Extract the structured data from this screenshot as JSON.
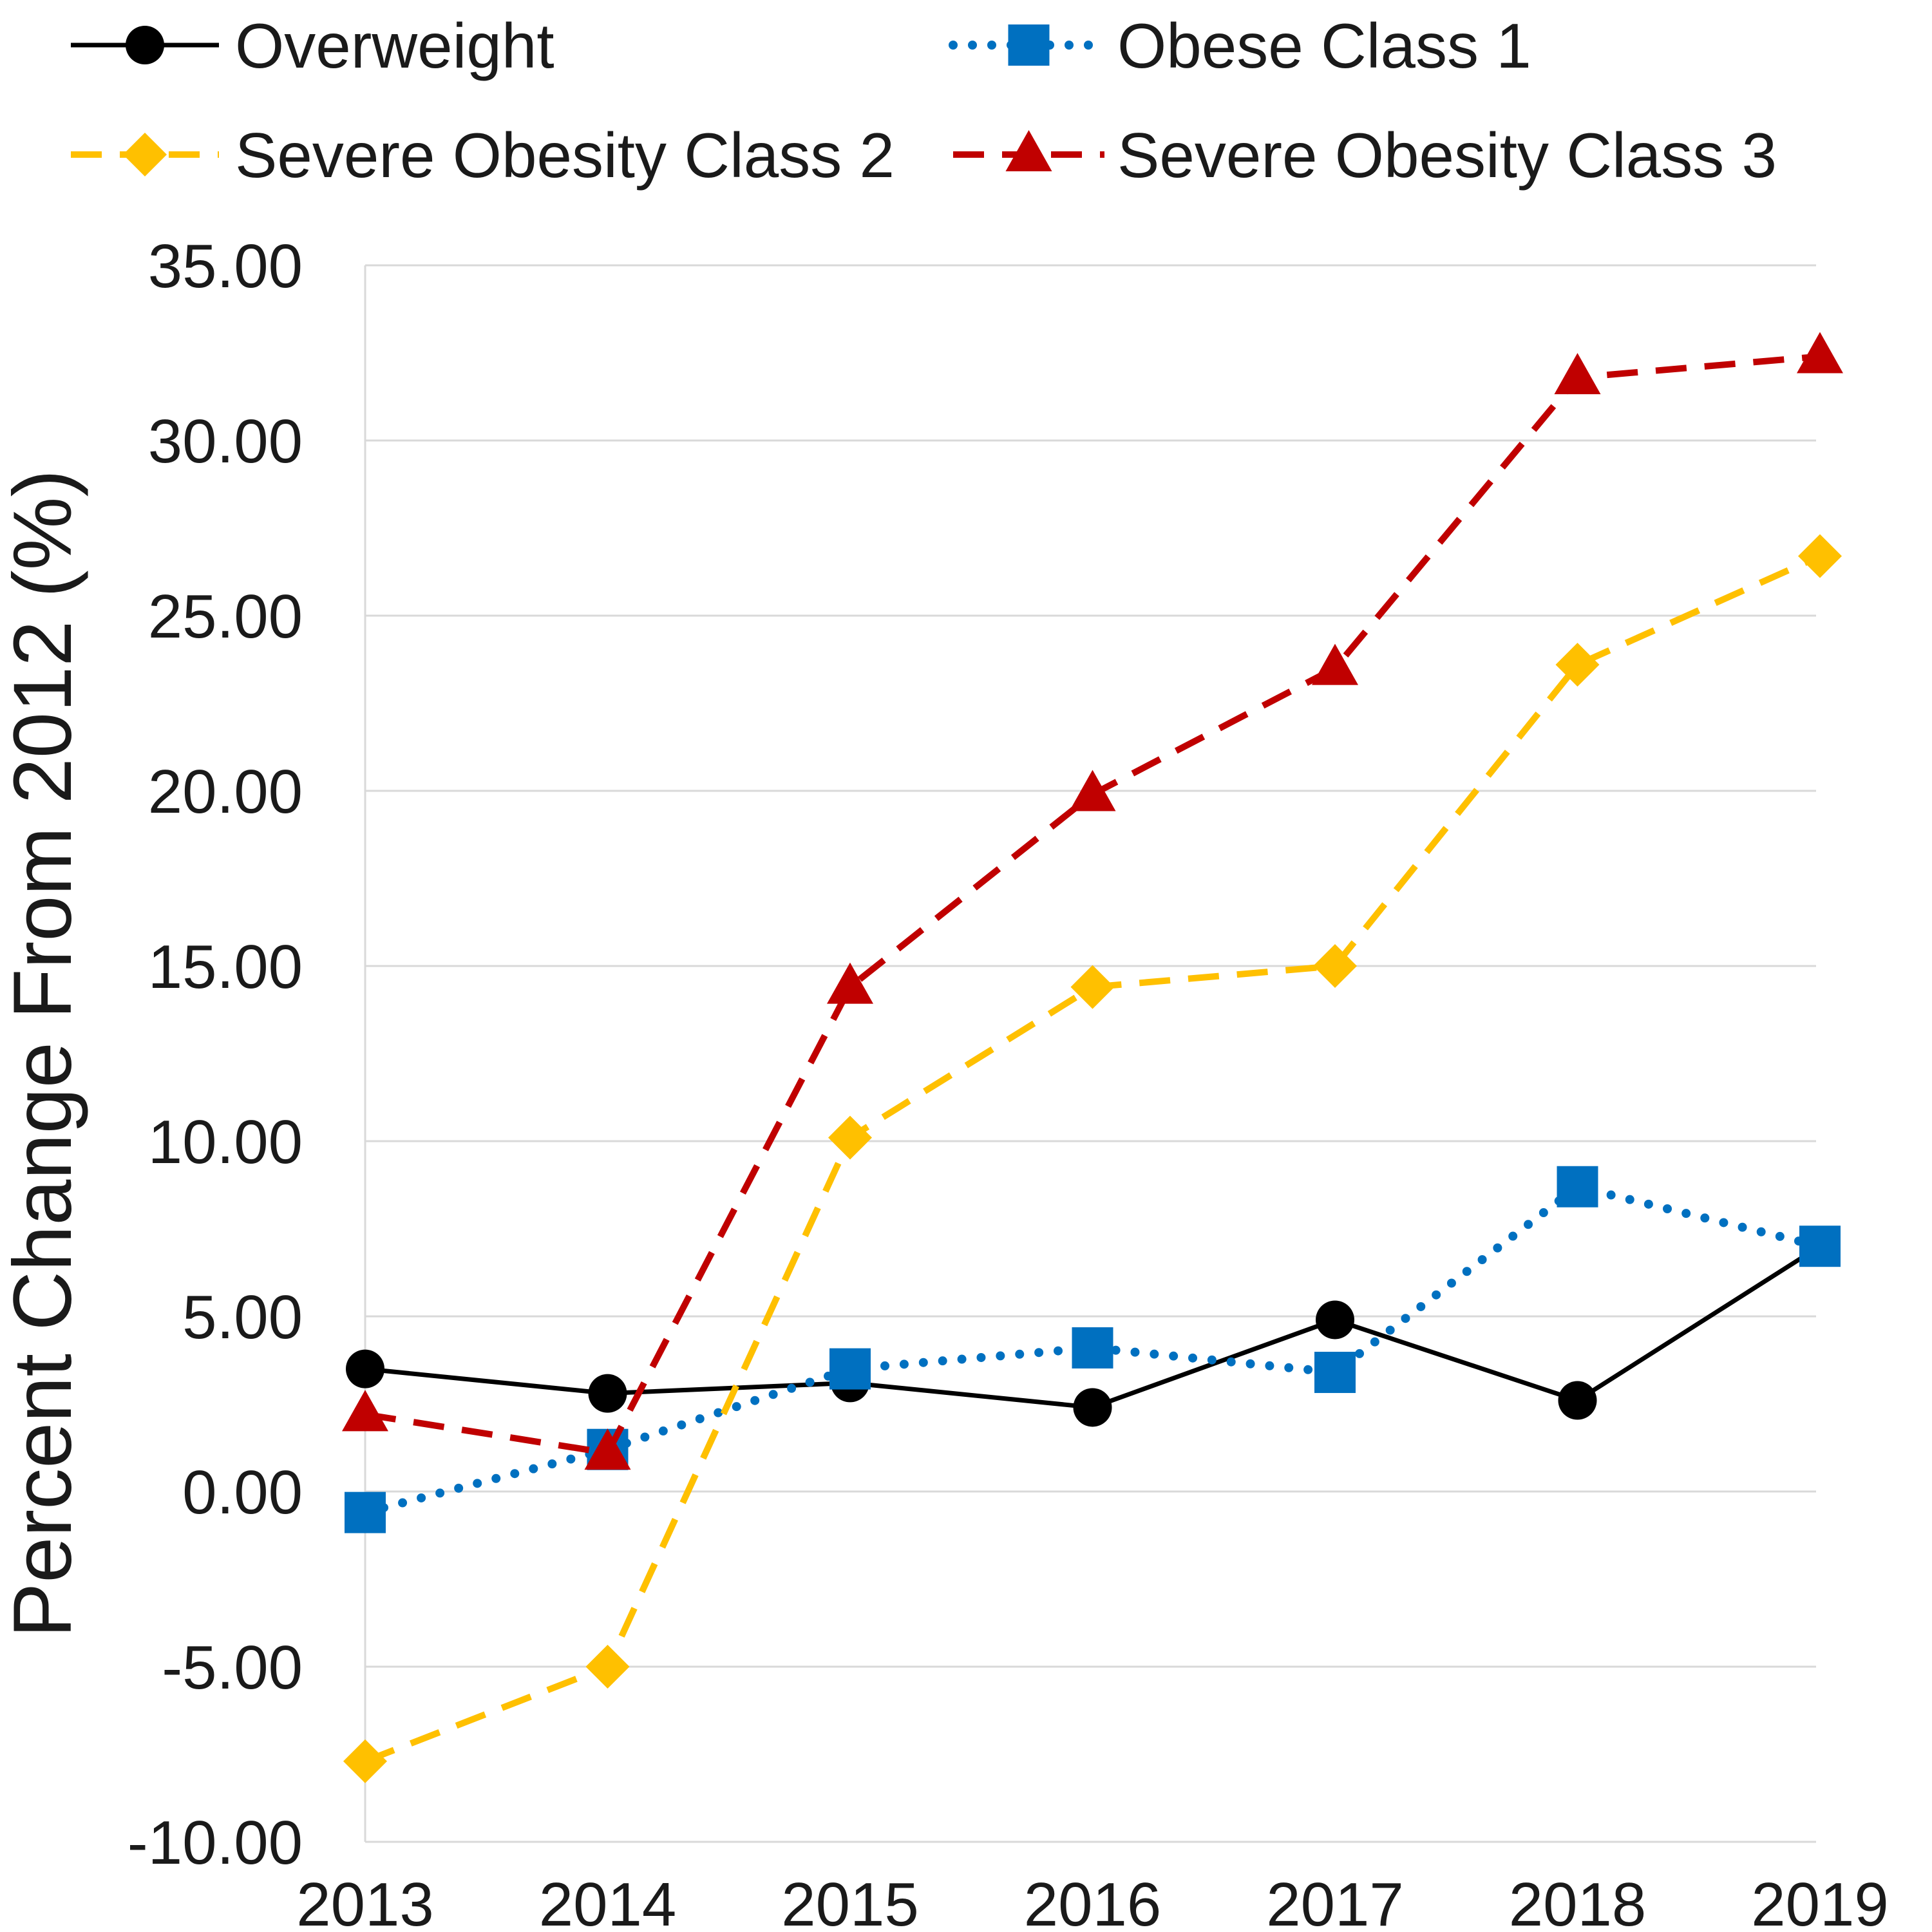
{
  "chart_data": {
    "type": "line",
    "title": "",
    "xlabel": "",
    "ylabel": "Percent Change From 2012 (%)",
    "categories": [
      "2013",
      "2014",
      "2015",
      "2016",
      "2017",
      "2018",
      "2019"
    ],
    "ylim": [
      -10,
      35
    ],
    "yticks": [
      "-10.00",
      "-5.00",
      "0.00",
      "5.00",
      "10.00",
      "15.00",
      "20.00",
      "25.00",
      "30.00",
      "35.00"
    ],
    "grid": true,
    "legend_position": "top",
    "series": [
      {
        "name": "Overweight",
        "key": "overweight",
        "color": "#000000",
        "line_style": "solid",
        "marker": "circle",
        "values": [
          3.5,
          2.8,
          3.1,
          2.4,
          4.9,
          2.6,
          7.0
        ]
      },
      {
        "name": "Obese Class 1",
        "key": "obese-class-1",
        "color": "#0070C0",
        "line_style": "dotted",
        "marker": "square",
        "values": [
          -0.6,
          1.2,
          3.5,
          4.1,
          3.4,
          8.7,
          7.0
        ]
      },
      {
        "name": "Severe Obesity Class 2",
        "key": "severe-obesity-class-2",
        "color": "#FFC000",
        "line_style": "dashed",
        "marker": "diamond",
        "values": [
          -7.7,
          -5.0,
          10.1,
          14.4,
          15.0,
          23.6,
          26.7
        ]
      },
      {
        "name": "Severe Obesity Class 3",
        "key": "severe-obesity-class-3",
        "color": "#C00000",
        "line_style": "dashed",
        "marker": "triangle",
        "values": [
          2.2,
          1.1,
          14.4,
          19.9,
          23.5,
          31.8,
          32.4
        ]
      }
    ]
  }
}
